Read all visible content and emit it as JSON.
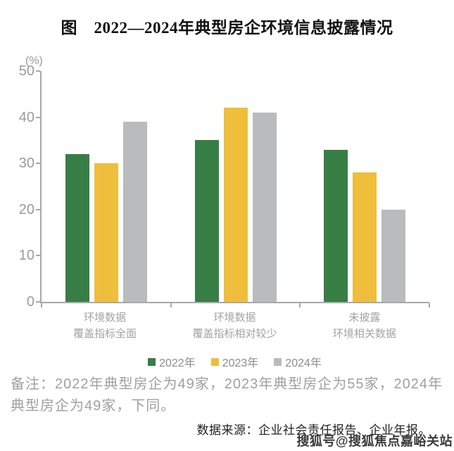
{
  "title": "图　2022—2024年典型房企环境信息披露情况",
  "chart_data": {
    "type": "bar",
    "title": "图　2022—2024年典型房企环境信息披露情况",
    "xlabel": "",
    "ylabel": "(%)",
    "ylim": [
      0,
      50
    ],
    "yticks": [
      0,
      10,
      20,
      30,
      40,
      50
    ],
    "grid": false,
    "legend_position": "bottom",
    "categories": [
      {
        "line1": "环境数据",
        "line2": "覆盖指标全面"
      },
      {
        "line1": "环境数据",
        "line2": "覆盖指标相对较少"
      },
      {
        "line1": "未披露",
        "line2": "环境相关数据"
      }
    ],
    "series": [
      {
        "name": "2022年",
        "color": "#377E45",
        "values": [
          32,
          35,
          33
        ]
      },
      {
        "name": "2023年",
        "color": "#EFBE3C",
        "values": [
          30,
          42,
          28
        ]
      },
      {
        "name": "2024年",
        "color": "#B9BBBD",
        "values": [
          39,
          41,
          20
        ]
      }
    ]
  },
  "note": "备注：2022年典型房企为49家，2023年典型房企为55家，2024年典型房企为49家，下同。",
  "source": "数据来源：企业社会责任报告、企业年报。",
  "watermark": "搜狐号@搜狐焦点嘉峪关站",
  "colors": {
    "axis": "#A8A8A8",
    "tick_label": "#9B9B9B",
    "category_label": "#A3A3A3",
    "legend_label": "#8C8C8C",
    "note_text": "#A0A0A0",
    "title_text": "#111111",
    "source_text": "#222222",
    "watermark_text": "#3A3A3A"
  }
}
